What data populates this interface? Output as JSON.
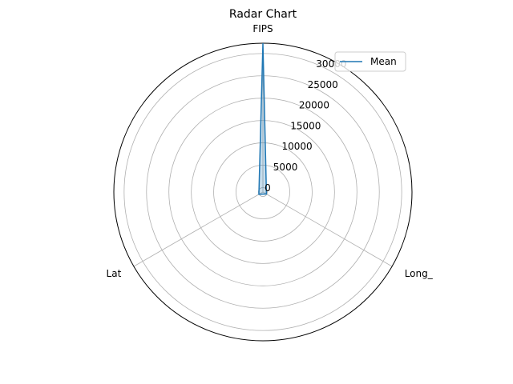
{
  "chart_data": {
    "type": "radar",
    "title": "Radar Chart",
    "axes": [
      "FIPS",
      "Long_",
      "Lat"
    ],
    "series": [
      {
        "name": "Mean",
        "values": [
          32300,
          -88,
          37
        ],
        "color": "#1f77b4"
      }
    ],
    "rlim": [
      -1000,
      32300
    ],
    "rticks": [
      0,
      5000,
      10000,
      15000,
      20000,
      25000,
      30000
    ],
    "rtick_labels": [
      "0",
      "5000",
      "10000",
      "15000",
      "20000",
      "25000",
      "30000"
    ],
    "legend_location": "top-right",
    "grid": true
  }
}
